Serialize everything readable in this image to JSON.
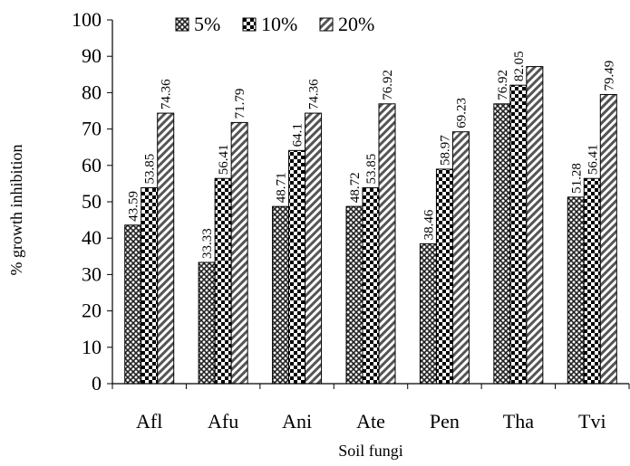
{
  "chart_data": {
    "type": "bar",
    "title": "",
    "xlabel": "Soil fungi",
    "ylabel": "% growth inhibition",
    "ylim": [
      0,
      100
    ],
    "yticks": [
      0,
      10,
      20,
      30,
      40,
      50,
      60,
      70,
      80,
      90,
      100
    ],
    "grid": false,
    "legend_position": "top",
    "categories": [
      "Afl",
      "Afu",
      "Ani",
      "Ate",
      "Pen",
      "Tha",
      "Tvi"
    ],
    "series": [
      {
        "name": "5%",
        "pattern": "crosshatch",
        "values": [
          43.59,
          33.33,
          48.71,
          48.72,
          38.46,
          76.92,
          51.28
        ],
        "labels": [
          "43.59",
          "33.33",
          "48.71",
          "48.72",
          "38.46",
          "76.92",
          "51.28"
        ]
      },
      {
        "name": "10%",
        "pattern": "checkerboard",
        "values": [
          53.85,
          56.41,
          64.1,
          53.85,
          58.97,
          82.05,
          56.41
        ],
        "labels": [
          "53.85",
          "56.41",
          "64.1",
          "53.85",
          "58.97",
          "82.05",
          "56.41"
        ]
      },
      {
        "name": "20%",
        "pattern": "diagonal-stripes",
        "values": [
          74.36,
          71.79,
          74.36,
          76.92,
          69.23,
          87.17,
          79.49
        ],
        "labels": [
          "74.36",
          "71.79",
          "74.36",
          "76.92",
          "69.23",
          "",
          "79.49"
        ]
      }
    ]
  }
}
